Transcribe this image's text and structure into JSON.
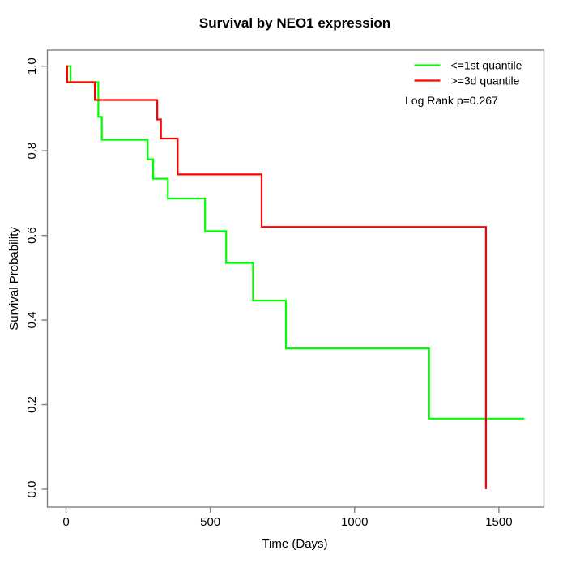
{
  "chart_data": {
    "type": "line",
    "subtype": "kaplan-meier-step",
    "title": "Survival by NEO1 expression",
    "xlabel": "Time (Days)",
    "ylabel": "Survival Probability",
    "xlim": [
      0,
      1594
    ],
    "ylim": [
      0.0,
      1.0
    ],
    "x_ticks": [
      0,
      500,
      1000,
      1500
    ],
    "y_ticks": [
      0.0,
      0.2,
      0.4,
      0.6,
      0.8,
      1.0
    ],
    "grid": "off",
    "legend_position": "top-right",
    "annotation": "Log Rank p=0.267",
    "series": [
      {
        "name": "<=1st quantile",
        "color": "#00ff00",
        "points": [
          [
            0,
            1.0
          ],
          [
            16,
            1.0
          ],
          [
            16,
            0.962
          ],
          [
            112,
            0.962
          ],
          [
            112,
            0.88
          ],
          [
            124,
            0.88
          ],
          [
            124,
            0.826
          ],
          [
            283,
            0.826
          ],
          [
            283,
            0.78
          ],
          [
            302,
            0.78
          ],
          [
            302,
            0.734
          ],
          [
            353,
            0.734
          ],
          [
            353,
            0.687
          ],
          [
            482,
            0.687
          ],
          [
            482,
            0.61
          ],
          [
            555,
            0.61
          ],
          [
            555,
            0.535
          ],
          [
            648,
            0.535
          ],
          [
            648,
            0.446
          ],
          [
            762,
            0.446
          ],
          [
            762,
            0.333
          ],
          [
            1258,
            0.333
          ],
          [
            1258,
            0.167
          ],
          [
            1588,
            0.167
          ]
        ]
      },
      {
        "name": ">=3d quantile",
        "color": "#ff0000",
        "points": [
          [
            0,
            1.0
          ],
          [
            4,
            1.0
          ],
          [
            4,
            0.962
          ],
          [
            100,
            0.962
          ],
          [
            100,
            0.92
          ],
          [
            316,
            0.92
          ],
          [
            316,
            0.874
          ],
          [
            329,
            0.874
          ],
          [
            329,
            0.829
          ],
          [
            387,
            0.829
          ],
          [
            387,
            0.744
          ],
          [
            678,
            0.744
          ],
          [
            678,
            0.62
          ],
          [
            1455,
            0.62
          ],
          [
            1455,
            0.0
          ]
        ]
      }
    ]
  },
  "frame_color": "#7f7f7f",
  "text_color": "#000000"
}
